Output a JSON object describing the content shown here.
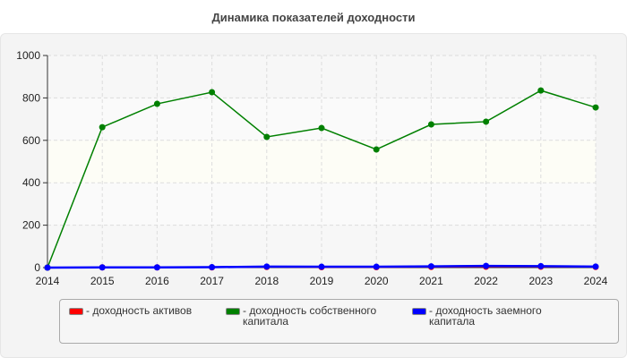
{
  "chart_data": {
    "type": "line",
    "title": "Динамика показателей доходности",
    "x": [
      2014,
      2015,
      2016,
      2017,
      2018,
      2019,
      2020,
      2021,
      2022,
      2023,
      2024
    ],
    "ylim": [
      0,
      1000
    ],
    "yticks": [
      0,
      200,
      400,
      600,
      800,
      1000
    ],
    "grid": true,
    "legend_placement": "bottom",
    "series": [
      {
        "name": "- доходность активов",
        "color": "#ff0000",
        "values": [
          0,
          1,
          1,
          1,
          3,
          2,
          2,
          3,
          4,
          4,
          3
        ]
      },
      {
        "name": "- доходность собственного капитала",
        "color": "#008000",
        "values": [
          0,
          662,
          772,
          827,
          616,
          658,
          557,
          675,
          688,
          835,
          755
        ]
      },
      {
        "name": "- доходность заемного капитала",
        "color": "#0000ff",
        "values": [
          0,
          1,
          1,
          2,
          5,
          4,
          4,
          6,
          8,
          7,
          5
        ]
      }
    ]
  }
}
